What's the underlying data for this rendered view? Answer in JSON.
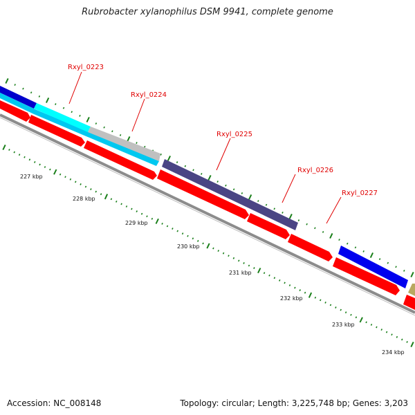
{
  "title": "Rubrobacter xylanophilus DSM 9941, complete genome",
  "footer": {
    "accession": "Accession: NC_008148",
    "summary": "Topology: circular; Length: 3,225,748 bp; Genes: 3,203"
  },
  "colors": {
    "backbone": "#8c8c8c",
    "cds": "#ff0000",
    "tick": "#1a7f1a",
    "gene_label": "#e00000",
    "kbp_label": "#111111"
  },
  "scale": {
    "unit": "kbp",
    "labels": [
      "227 kbp",
      "228 kbp",
      "229 kbp",
      "230 kbp",
      "231 kbp",
      "232 kbp",
      "233 kbp",
      "234 kbp"
    ]
  },
  "gene_labels": [
    "Rxyl_0223",
    "Rxyl_0224",
    "Rxyl_0225",
    "Rxyl_0226",
    "Rxyl_0227"
  ],
  "tracks": {
    "cds_strand": [
      "cds-1",
      "cds-2",
      "cds-3",
      "cds-4",
      "cds-5",
      "cds-6",
      "cds-7",
      "cds-8",
      "cds-9"
    ],
    "feature_colors": [
      "#0000cc",
      "#00c8f0",
      "#00ffff",
      "#c0c0c0",
      "#4a4584",
      "#0000ee",
      "#b8a860"
    ]
  }
}
